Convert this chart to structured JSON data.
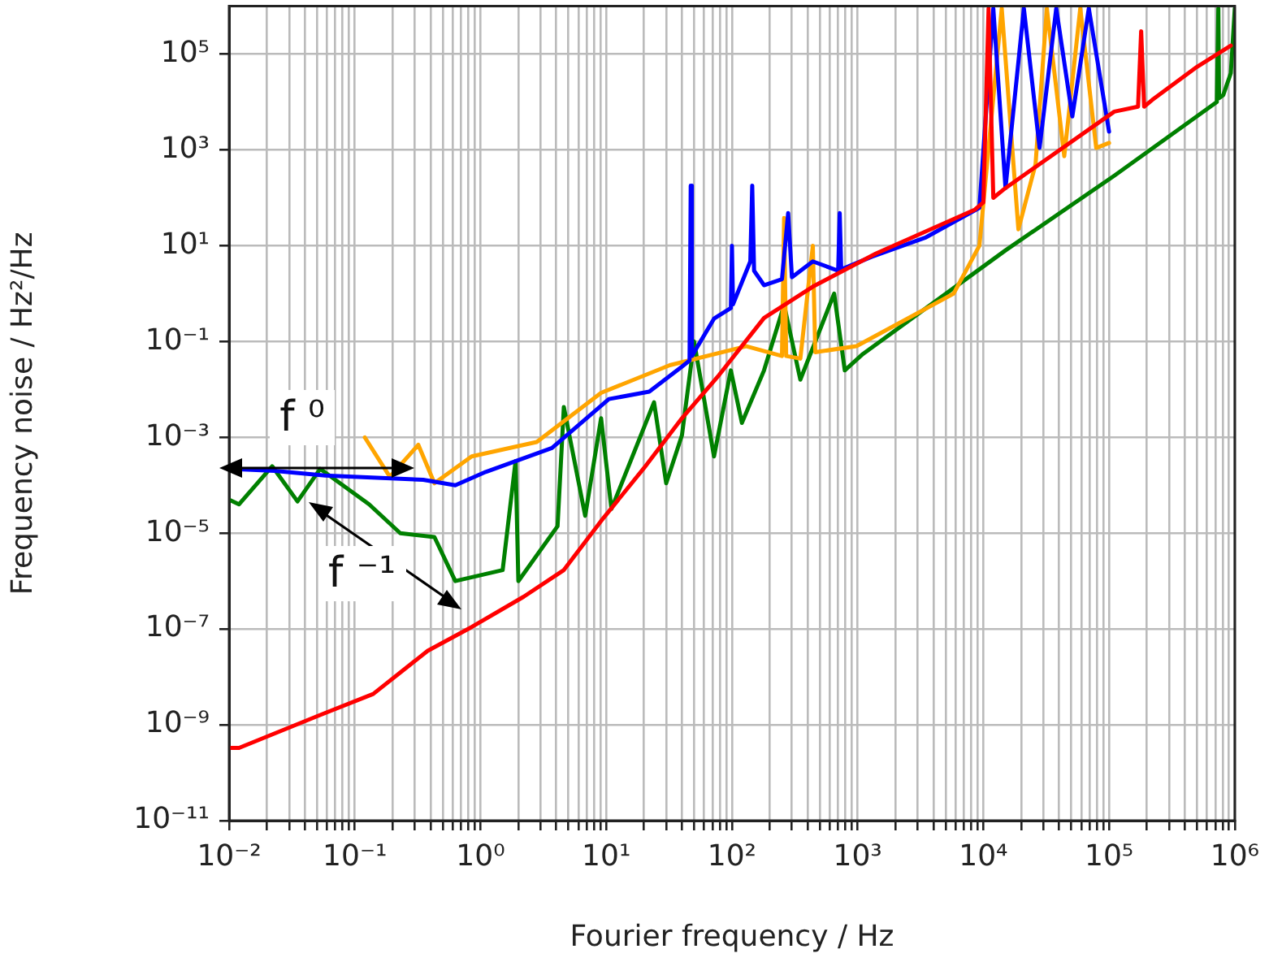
{
  "chart_data": {
    "type": "line",
    "xlabel": "Fourier frequency / Hz",
    "ylabel": "Frequency noise / Hz²/Hz",
    "log": "xy",
    "grid": true,
    "marker": "none",
    "line_style": "solid",
    "xlim": [
      0.01,
      1000000
    ],
    "ylim": [
      1e-11,
      1000000
    ],
    "xticks": [
      {
        "value": 0.01,
        "label": "10⁻²"
      },
      {
        "value": 0.02,
        "label": null
      },
      {
        "value": 0.03,
        "label": null
      },
      {
        "value": 0.04,
        "label": null
      },
      {
        "value": 0.05,
        "label": null
      },
      {
        "value": 0.06,
        "label": null
      },
      {
        "value": 0.07,
        "label": null
      },
      {
        "value": 0.08,
        "label": null
      },
      {
        "value": 0.09,
        "label": null
      },
      {
        "value": 0.1,
        "label": "10⁻¹"
      },
      {
        "value": 0.2,
        "label": null
      },
      {
        "value": 0.3,
        "label": null
      },
      {
        "value": 0.4,
        "label": null
      },
      {
        "value": 0.5,
        "label": null
      },
      {
        "value": 0.6,
        "label": null
      },
      {
        "value": 0.7,
        "label": null
      },
      {
        "value": 0.8,
        "label": null
      },
      {
        "value": 0.9,
        "label": null
      },
      {
        "value": 1,
        "label": "10⁰"
      },
      {
        "value": 2,
        "label": null
      },
      {
        "value": 3,
        "label": null
      },
      {
        "value": 4,
        "label": null
      },
      {
        "value": 5,
        "label": null
      },
      {
        "value": 6,
        "label": null
      },
      {
        "value": 7,
        "label": null
      },
      {
        "value": 8,
        "label": null
      },
      {
        "value": 9,
        "label": null
      },
      {
        "value": 10,
        "label": "10¹"
      },
      {
        "value": 20,
        "label": null
      },
      {
        "value": 30,
        "label": null
      },
      {
        "value": 40,
        "label": null
      },
      {
        "value": 50,
        "label": null
      },
      {
        "value": 60,
        "label": null
      },
      {
        "value": 70,
        "label": null
      },
      {
        "value": 80,
        "label": null
      },
      {
        "value": 90,
        "label": null
      },
      {
        "value": 100,
        "label": "10²"
      },
      {
        "value": 200,
        "label": null
      },
      {
        "value": 300,
        "label": null
      },
      {
        "value": 400,
        "label": null
      },
      {
        "value": 500,
        "label": null
      },
      {
        "value": 600,
        "label": null
      },
      {
        "value": 700,
        "label": null
      },
      {
        "value": 800,
        "label": null
      },
      {
        "value": 900,
        "label": null
      },
      {
        "value": 1000,
        "label": "10³"
      },
      {
        "value": 2000,
        "label": null
      },
      {
        "value": 3000,
        "label": null
      },
      {
        "value": 4000,
        "label": null
      },
      {
        "value": 5000,
        "label": null
      },
      {
        "value": 6000,
        "label": null
      },
      {
        "value": 7000,
        "label": null
      },
      {
        "value": 8000,
        "label": null
      },
      {
        "value": 9000,
        "label": null
      },
      {
        "value": 10000,
        "label": "10⁴"
      },
      {
        "value": 20000,
        "label": null
      },
      {
        "value": 30000,
        "label": null
      },
      {
        "value": 40000,
        "label": null
      },
      {
        "value": 50000,
        "label": null
      },
      {
        "value": 60000,
        "label": null
      },
      {
        "value": 70000,
        "label": null
      },
      {
        "value": 80000,
        "label": null
      },
      {
        "value": 90000,
        "label": null
      },
      {
        "value": 100000,
        "label": "10⁵"
      },
      {
        "value": 200000,
        "label": null
      },
      {
        "value": 300000,
        "label": null
      },
      {
        "value": 400000,
        "label": null
      },
      {
        "value": 500000,
        "label": null
      },
      {
        "value": 600000,
        "label": null
      },
      {
        "value": 700000,
        "label": null
      },
      {
        "value": 800000,
        "label": null
      },
      {
        "value": 900000,
        "label": null
      },
      {
        "value": 1000000,
        "label": "10⁶"
      }
    ],
    "yticks": [
      {
        "value": 1e-11,
        "label": "10⁻¹¹"
      },
      {
        "value": 1e-09,
        "label": "10⁻⁹"
      },
      {
        "value": 1e-07,
        "label": "10⁻⁷"
      },
      {
        "value": 1e-05,
        "label": "10⁻⁵"
      },
      {
        "value": 0.001,
        "label": "10⁻³"
      },
      {
        "value": 0.1,
        "label": "10⁻¹"
      },
      {
        "value": 10,
        "label": "10¹"
      },
      {
        "value": 1000,
        "label": "10³"
      },
      {
        "value": 100000,
        "label": "10⁵"
      }
    ],
    "annotations": [
      {
        "text": "f ⁰",
        "x": 0.05,
        "y": 0.00023
      },
      "f ⁻¹"
    ],
    "series": [
      {
        "color": "#ff0000",
        "x": [
          0.01,
          0.012,
          0.053,
          0.14,
          0.38,
          0.85,
          2.2,
          4.6,
          9.1,
          20,
          40,
          79,
          180,
          440,
          1400,
          8500,
          10000,
          11000,
          12000,
          15000,
          110000,
          170000,
          180000,
          190000,
          220000,
          500000,
          930000
        ],
        "values": [
          3.3e-10,
          3.3e-10,
          1.6e-09,
          4.4e-09,
          3.5e-08,
          1.1e-07,
          4.7e-07,
          1.7e-06,
          1.8e-05,
          0.00023,
          0.0025,
          0.02,
          0.31,
          1.4,
          6.9,
          56,
          80,
          900000,
          100,
          160,
          6300,
          8000,
          300000,
          8000,
          11000,
          54000,
          150000
        ]
      },
      {
        "color": "#0000ff",
        "x": [
          0.01,
          0.023,
          0.058,
          0.35,
          0.63,
          1.1,
          3.7,
          10.5,
          22,
          40,
          46,
          47,
          48,
          72,
          98,
          100,
          102,
          140,
          145,
          150,
          180,
          250,
          280,
          300,
          440,
          700,
          720,
          740,
          1300,
          3500,
          9300,
          12000,
          15000,
          21000,
          28000,
          38000,
          51000,
          69000,
          100000
        ],
        "values": [
          0.00022,
          0.0002,
          0.00016,
          0.00013,
          0.0001,
          0.00019,
          0.0006,
          0.0063,
          0.009,
          0.03,
          0.04,
          180,
          0.05,
          0.3,
          0.5,
          10,
          0.6,
          4.7,
          180,
          3,
          1.5,
          2,
          48,
          2.2,
          4.7,
          3,
          48,
          3.2,
          5.9,
          15,
          62,
          900000,
          160,
          900000,
          1100,
          900000,
          5000,
          900000,
          2400
        ]
      },
      {
        "color": "#ffa500",
        "x": [
          0.12,
          0.19,
          0.32,
          0.43,
          0.85,
          2.8,
          9.1,
          32,
          130,
          250,
          260,
          270,
          350,
          440,
          460,
          980,
          5800,
          9300,
          14000,
          19000,
          26000,
          32000,
          44000,
          59000,
          79000,
          100000
        ],
        "values": [
          0.001,
          0.00015,
          0.0007,
          0.00011,
          0.0004,
          0.0008,
          0.0085,
          0.032,
          0.08,
          0.05,
          38,
          0.05,
          0.044,
          10,
          0.06,
          0.08,
          1,
          10,
          900000,
          22,
          500,
          900000,
          740,
          900000,
          1100,
          1400
        ]
      },
      {
        "color": "#008000",
        "x": [
          0.01,
          0.012,
          0.022,
          0.035,
          0.053,
          0.13,
          0.23,
          0.43,
          0.63,
          1.5,
          1.9,
          2,
          4.1,
          4.6,
          6.8,
          9.1,
          11,
          24,
          30,
          40,
          50,
          72,
          98,
          120,
          180,
          260,
          350,
          650,
          790,
          1100,
          15000,
          110000,
          720000,
          740000,
          750000,
          810000,
          930000,
          1000000
        ],
        "values": [
          5e-05,
          4e-05,
          0.00025,
          4.6e-05,
          0.00022,
          4e-05,
          1e-05,
          8.3e-06,
          1e-06,
          1.7e-06,
          0.00032,
          1e-06,
          1.4e-05,
          0.0043,
          2.3e-05,
          0.0025,
          3.2e-05,
          0.0054,
          0.00011,
          0.0011,
          0.1,
          0.0004,
          0.025,
          0.002,
          0.025,
          0.58,
          0.016,
          1,
          0.025,
          0.055,
          8,
          290,
          10000,
          900000,
          12000,
          14000,
          40000,
          900000
        ]
      }
    ]
  }
}
